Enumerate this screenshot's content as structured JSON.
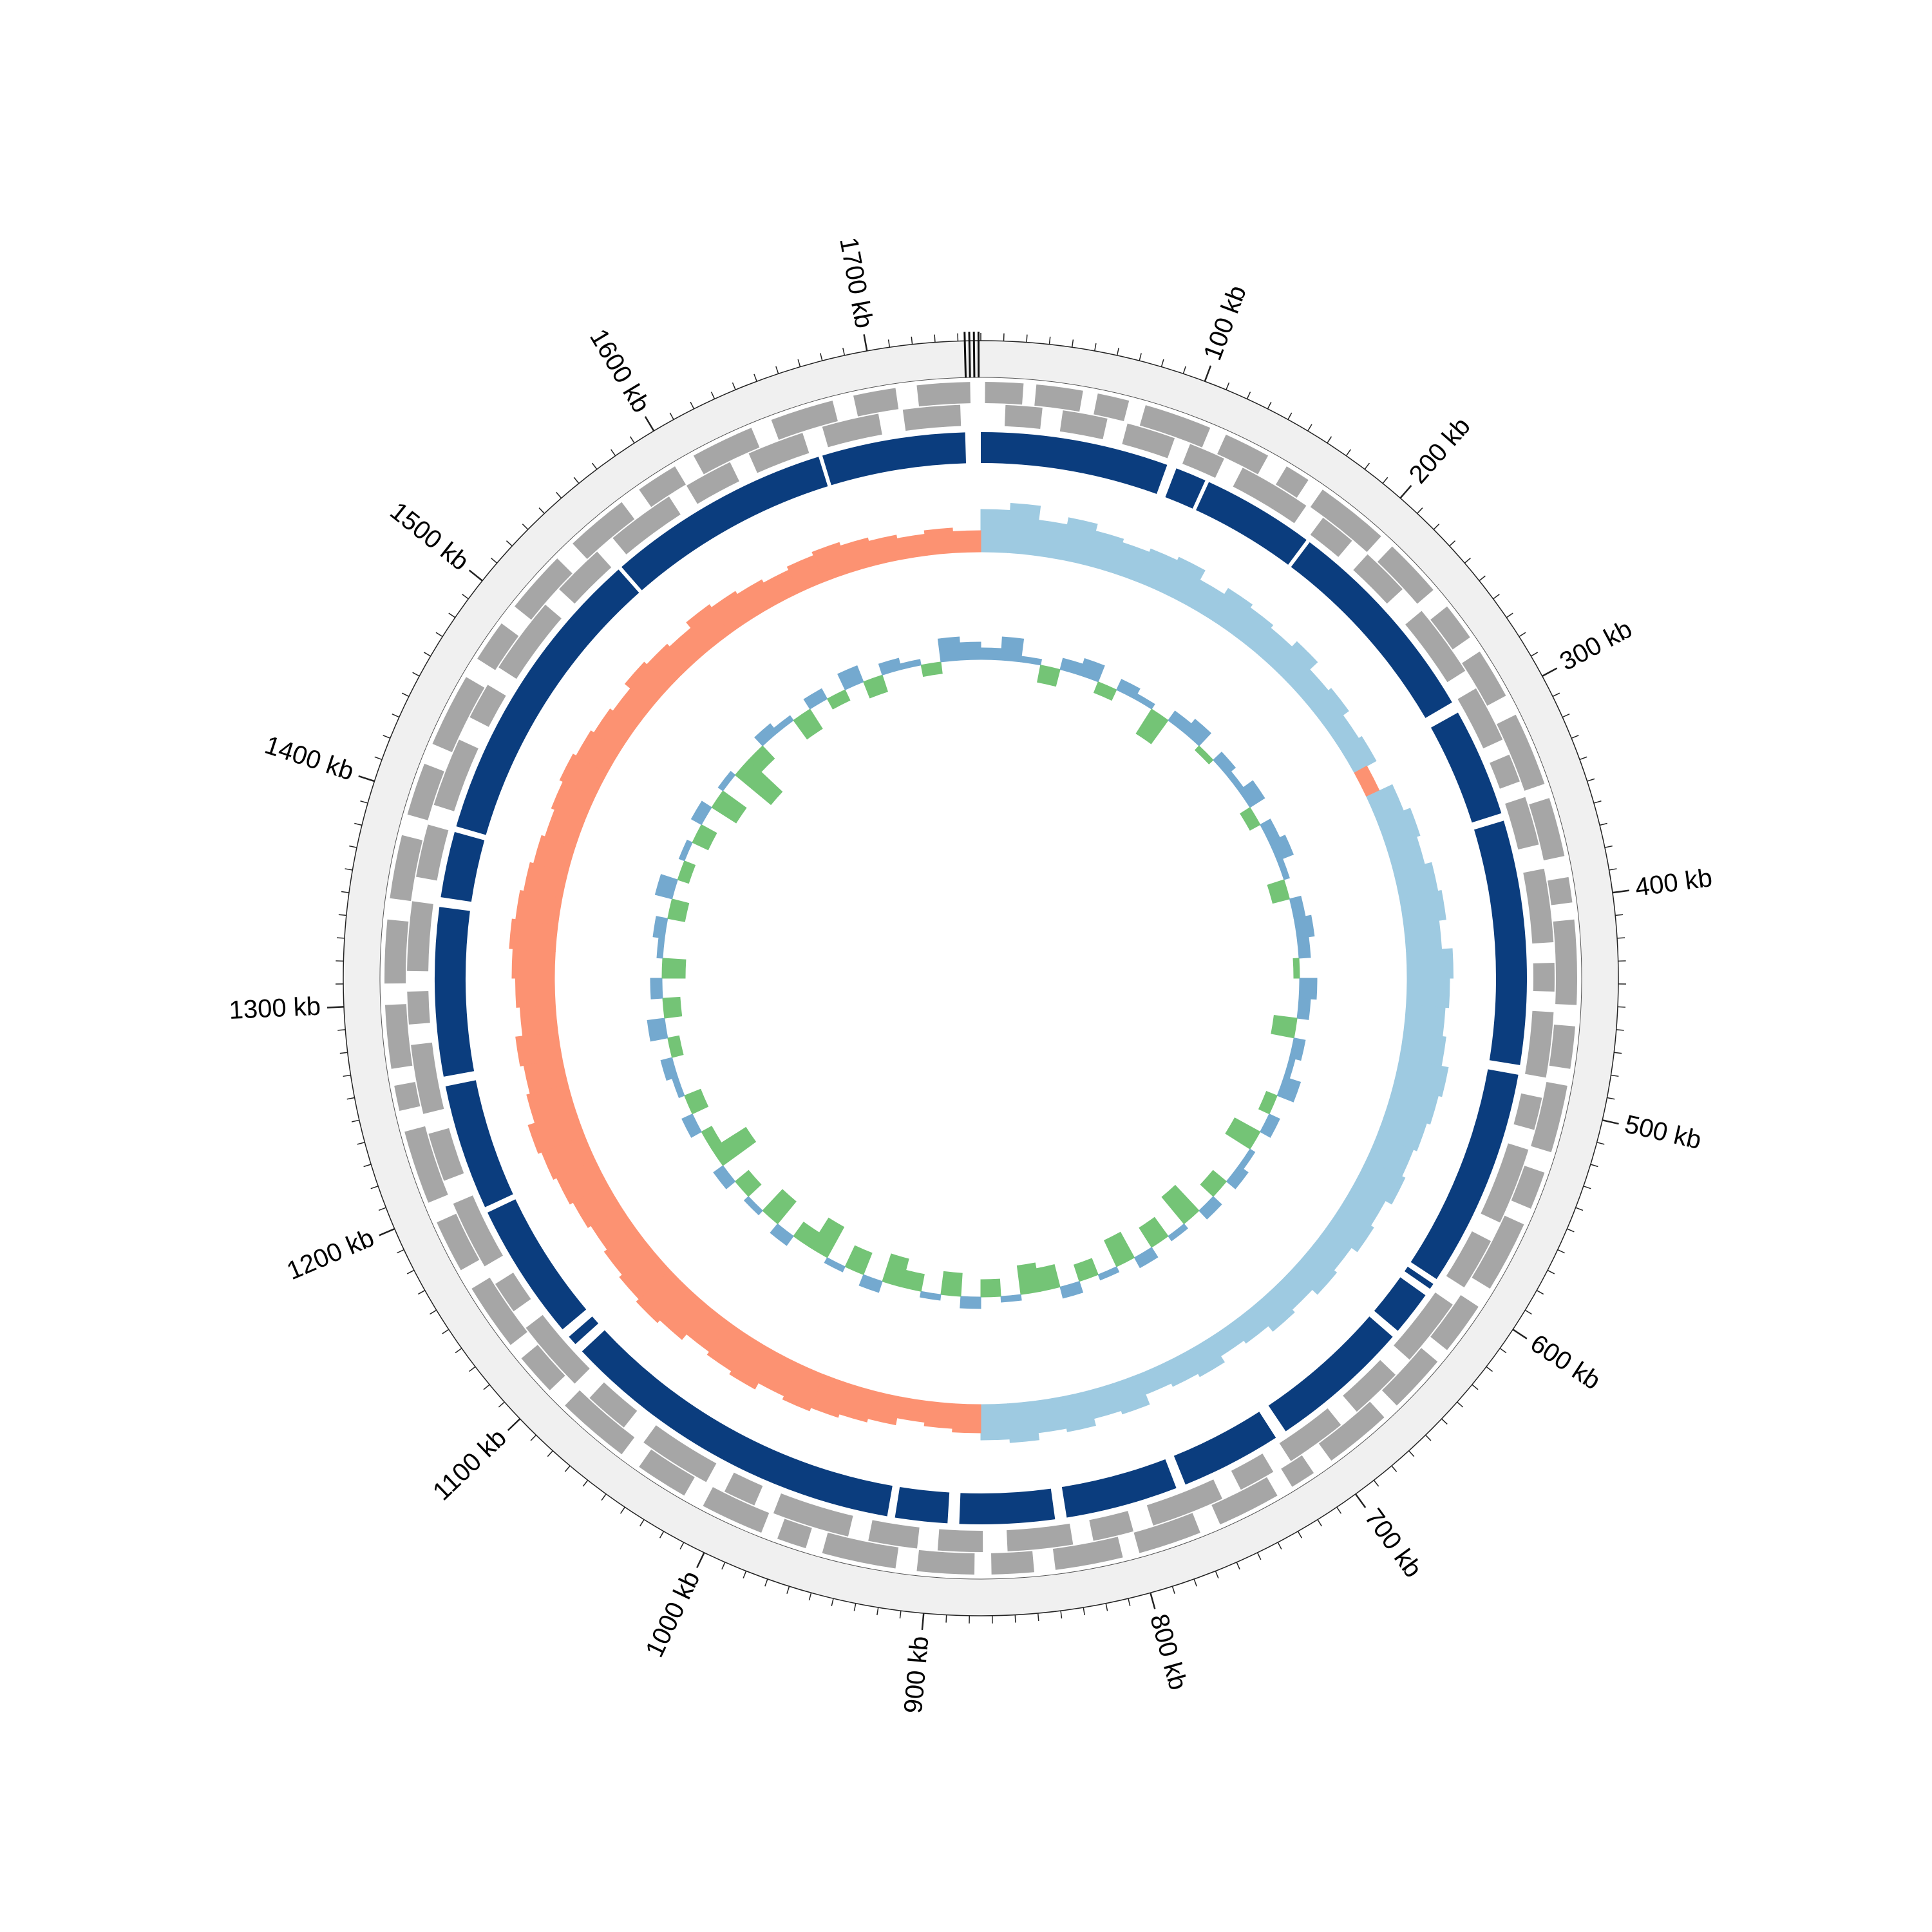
{
  "chart_data": {
    "type": "circular",
    "xlim": [
      0,
      1750
    ],
    "xticks": [
      {
        "value": 100,
        "label": "100 kb"
      },
      {
        "value": 200,
        "label": "200 kb"
      },
      {
        "value": 300,
        "label": "300 kb"
      },
      {
        "value": 400,
        "label": "400 kb"
      },
      {
        "value": 500,
        "label": "500 kb"
      },
      {
        "value": 600,
        "label": "600 kb"
      },
      {
        "value": 700,
        "label": "700 kb"
      },
      {
        "value": 800,
        "label": "800 kb"
      },
      {
        "value": 900,
        "label": "900 kb"
      },
      {
        "value": 1000,
        "label": "1000 kb"
      },
      {
        "value": 1100,
        "label": "1100 kb"
      },
      {
        "value": 1200,
        "label": "1200 kb"
      },
      {
        "value": 1300,
        "label": "1300 kb"
      },
      {
        "value": 1400,
        "label": "1400 kb"
      },
      {
        "value": 1500,
        "label": "1500 kb"
      },
      {
        "value": 1600,
        "label": "1600 kb"
      },
      {
        "value": 1700,
        "label": "1700 kb"
      }
    ],
    "minor_tick_step": 10,
    "ring_color": "#f0f0f0",
    "marker_positions": [
      1743,
      1745,
      1747,
      1749
    ],
    "gene_color": "#a6a6a6",
    "plus_strand": [
      [
        2,
        20
      ],
      [
        26,
        48
      ],
      [
        55,
        70
      ],
      [
        78,
        110
      ],
      [
        118,
        140
      ],
      [
        150,
        162
      ],
      [
        170,
        205
      ],
      [
        212,
        240
      ],
      [
        250,
        268
      ],
      [
        276,
        300
      ],
      [
        310,
        345
      ],
      [
        352,
        380
      ],
      [
        390,
        402
      ],
      [
        410,
        450
      ],
      [
        460,
        480
      ],
      [
        488,
        520
      ],
      [
        530,
        548
      ],
      [
        556,
        590
      ],
      [
        600,
        625
      ],
      [
        632,
        660
      ],
      [
        668,
        700
      ],
      [
        710,
        722
      ],
      [
        730,
        760
      ],
      [
        770,
        800
      ],
      [
        808,
        840
      ],
      [
        850,
        870
      ],
      [
        878,
        905
      ],
      [
        915,
        950
      ],
      [
        958,
        972
      ],
      [
        980,
        1010
      ],
      [
        1020,
        1045
      ],
      [
        1055,
        1090
      ],
      [
        1100,
        1120
      ],
      [
        1128,
        1160
      ],
      [
        1170,
        1195
      ],
      [
        1205,
        1240
      ],
      [
        1250,
        1262
      ],
      [
        1270,
        1300
      ],
      [
        1310,
        1340
      ],
      [
        1350,
        1380
      ],
      [
        1390,
        1415
      ],
      [
        1425,
        1460
      ],
      [
        1470,
        1490
      ],
      [
        1500,
        1530
      ],
      [
        1540,
        1570
      ],
      [
        1580,
        1600
      ],
      [
        1610,
        1640
      ],
      [
        1650,
        1680
      ],
      [
        1690,
        1710
      ],
      [
        1720,
        1745
      ]
    ],
    "minus_strand": [
      [
        12,
        30
      ],
      [
        40,
        62
      ],
      [
        72,
        96
      ],
      [
        104,
        122
      ],
      [
        132,
        168
      ],
      [
        178,
        196
      ],
      [
        206,
        230
      ],
      [
        244,
        280
      ],
      [
        290,
        318
      ],
      [
        326,
        340
      ],
      [
        348,
        372
      ],
      [
        384,
        420
      ],
      [
        430,
        444
      ],
      [
        454,
        486
      ],
      [
        496,
        512
      ],
      [
        522,
        560
      ],
      [
        570,
        596
      ],
      [
        606,
        640
      ],
      [
        650,
        676
      ],
      [
        686,
        716
      ],
      [
        726,
        744
      ],
      [
        754,
        790
      ],
      [
        800,
        820
      ],
      [
        830,
        862
      ],
      [
        874,
        896
      ],
      [
        906,
        930
      ],
      [
        940,
        978
      ],
      [
        988,
        1004
      ],
      [
        1014,
        1050
      ],
      [
        1062,
        1084
      ],
      [
        1094,
        1130
      ],
      [
        1140,
        1156
      ],
      [
        1166,
        1200
      ],
      [
        1212,
        1236
      ],
      [
        1246,
        1280
      ],
      [
        1290,
        1306
      ],
      [
        1316,
        1350
      ],
      [
        1362,
        1388
      ],
      [
        1398,
        1432
      ],
      [
        1444,
        1462
      ],
      [
        1472,
        1510
      ],
      [
        1520,
        1546
      ],
      [
        1556,
        1590
      ],
      [
        1600,
        1624
      ],
      [
        1634,
        1662
      ],
      [
        1672,
        1700
      ],
      [
        1712,
        1740
      ]
    ],
    "contig_color": "#0b3d7e",
    "contigs": [
      [
        0,
        97
      ],
      [
        102,
        118
      ],
      [
        120,
        178
      ],
      [
        180,
        290
      ],
      [
        296,
        352
      ],
      [
        356,
        482
      ],
      [
        487,
        600
      ],
      [
        603,
        606
      ],
      [
        610,
        633
      ],
      [
        637,
        710
      ],
      [
        716,
        768
      ],
      [
        773,
        831
      ],
      [
        837,
        886
      ],
      [
        892,
        919
      ],
      [
        923,
        1103
      ],
      [
        1108,
        1113
      ],
      [
        1118,
        1189
      ],
      [
        1192,
        1257
      ],
      [
        1262,
        1349
      ],
      [
        1354,
        1388
      ],
      [
        1391,
        1548
      ],
      [
        1550,
        1666
      ],
      [
        1668,
        1742
      ]
    ],
    "window": 17.5,
    "skew_limit": 0.1,
    "skew_colors": [
      "#9ecae1",
      "#fc9272"
    ],
    "gc_skew": [
      0.06,
      0.07,
      0.05,
      0.06,
      0.05,
      0.045,
      0.05,
      0.055,
      0.04,
      0.05,
      0.045,
      0.04,
      0.05,
      0.035,
      0.04,
      0.03,
      0.035,
      -0.02,
      0.04,
      0.05,
      0.045,
      0.055,
      0.06,
      0.05,
      0.065,
      0.06,
      0.055,
      0.06,
      0.07,
      0.065,
      0.06,
      0.055,
      0.06,
      0.05,
      0.055,
      0.045,
      0.05,
      0.04,
      0.045,
      0.035,
      0.03,
      0.04,
      0.035,
      0.03,
      0.045,
      0.04,
      0.05,
      0.045,
      0.055,
      0.05,
      -0.04,
      -0.035,
      -0.03,
      -0.04,
      -0.045,
      -0.05,
      -0.055,
      -0.05,
      -0.06,
      -0.055,
      -0.05,
      -0.06,
      -0.065,
      -0.06,
      -0.055,
      -0.05,
      -0.055,
      -0.06,
      -0.065,
      -0.07,
      -0.06,
      -0.055,
      -0.06,
      -0.05,
      -0.055,
      -0.06,
      -0.065,
      -0.06,
      -0.055,
      -0.05,
      -0.045,
      -0.05,
      -0.055,
      -0.05,
      -0.045,
      -0.04,
      -0.05,
      -0.045,
      -0.04,
      -0.05,
      -0.045,
      -0.04,
      -0.035,
      -0.04,
      -0.045,
      -0.04,
      -0.035,
      -0.03,
      -0.035,
      -0.03
    ],
    "gc_colors": [
      "#74a9cf",
      "#74c476"
    ],
    "gc_content": [
      0.02,
      0.04,
      0.01,
      -0.03,
      0.02,
      0.03,
      -0.02,
      0.02,
      0.01,
      -0.05,
      0.02,
      0.03,
      -0.01,
      0.02,
      0.01,
      0.03,
      -0.02,
      0.02,
      0.03,
      0.01,
      -0.03,
      0.02,
      0.03,
      0.02,
      -0.01,
      0.03,
      0.02,
      -0.04,
      0.02,
      0.01,
      0.03,
      -0.02,
      0.02,
      -0.05,
      0.01,
      0.02,
      -0.03,
      0.02,
      -0.06,
      0.01,
      -0.04,
      0.02,
      -0.05,
      0.01,
      -0.03,
      0.02,
      -0.04,
      -0.05,
      0.01,
      -0.03,
      0.02,
      -0.04,
      0.01,
      -0.03,
      -0.05,
      0.02,
      -0.04,
      0.01,
      -0.06,
      -0.03,
      0.02,
      -0.05,
      0.01,
      -0.03,
      0.02,
      -0.07,
      -0.02,
      0.02,
      -0.03,
      0.01,
      0.02,
      -0.02,
      0.03,
      -0.03,
      0.02,
      -0.04,
      0.01,
      0.02,
      -0.03,
      0.03,
      -0.02,
      0.01,
      -0.03,
      0.02,
      -0.05,
      0.01,
      -0.08,
      -0.03,
      0.02,
      0.01,
      -0.04,
      0.02,
      -0.02,
      0.03,
      -0.03,
      0.02,
      0.01,
      -0.02,
      0.04,
      0.03
    ]
  }
}
